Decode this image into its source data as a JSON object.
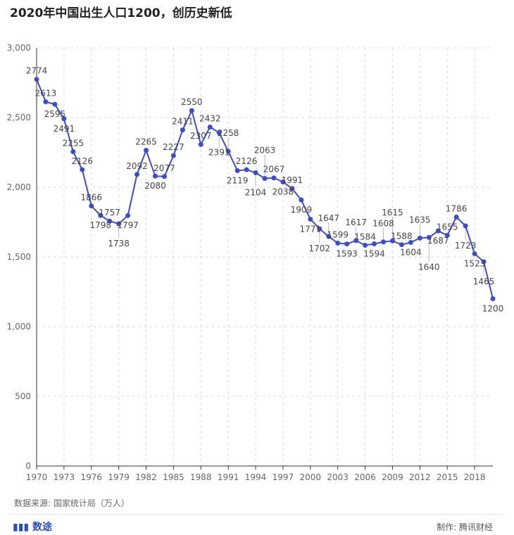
{
  "chart_data": {
    "type": "line",
    "title": "2020年中国出生人口1200，创历史新低",
    "xlabel": "",
    "ylabel": "",
    "x": [
      1970,
      1971,
      1972,
      1973,
      1974,
      1975,
      1976,
      1977,
      1978,
      1979,
      1980,
      1981,
      1982,
      1983,
      1984,
      1985,
      1986,
      1987,
      1988,
      1989,
      1990,
      1991,
      1992,
      1993,
      1994,
      1995,
      1996,
      1997,
      1998,
      1999,
      2000,
      2001,
      2002,
      2003,
      2004,
      2005,
      2006,
      2007,
      2008,
      2009,
      2010,
      2011,
      2012,
      2013,
      2014,
      2015,
      2016,
      2017,
      2018,
      2019,
      2020
    ],
    "series": [
      {
        "name": "出生人口（万人）",
        "values": [
          2774,
          2613,
          2595,
          2491,
          2255,
          2126,
          1866,
          1798,
          1757,
          1738,
          1797,
          2092,
          2265,
          2080,
          2077,
          2227,
          2411,
          2550,
          2307,
          2432,
          2391,
          2258,
          2119,
          2126,
          2104,
          2063,
          2067,
          2038,
          1991,
          1909,
          1771,
          1702,
          1647,
          1599,
          1593,
          1617,
          1584,
          1594,
          1608,
          1615,
          1588,
          1604,
          1635,
          1640,
          1687,
          1655,
          1786,
          1723,
          1523,
          1465,
          1200
        ]
      }
    ],
    "xticks": [
      "1970",
      "1973",
      "1976",
      "1979",
      "1982",
      "1985",
      "1988",
      "1991",
      "1994",
      "1997",
      "2000",
      "2003",
      "2006",
      "2009",
      "2012",
      "2015",
      "2018"
    ],
    "yticks": [
      "0",
      "500",
      "1,000",
      "1,500",
      "2,000",
      "2,500",
      "3,000"
    ],
    "ylim": [
      0,
      3000
    ],
    "xlim": [
      1970,
      2020
    ],
    "grid": true,
    "color": "#3d4dc4"
  },
  "source": "数据来源: 国家统计局（万人）",
  "logo": "数途",
  "credit": "制作: 腾讯财经",
  "watermark": "腾讯财经"
}
